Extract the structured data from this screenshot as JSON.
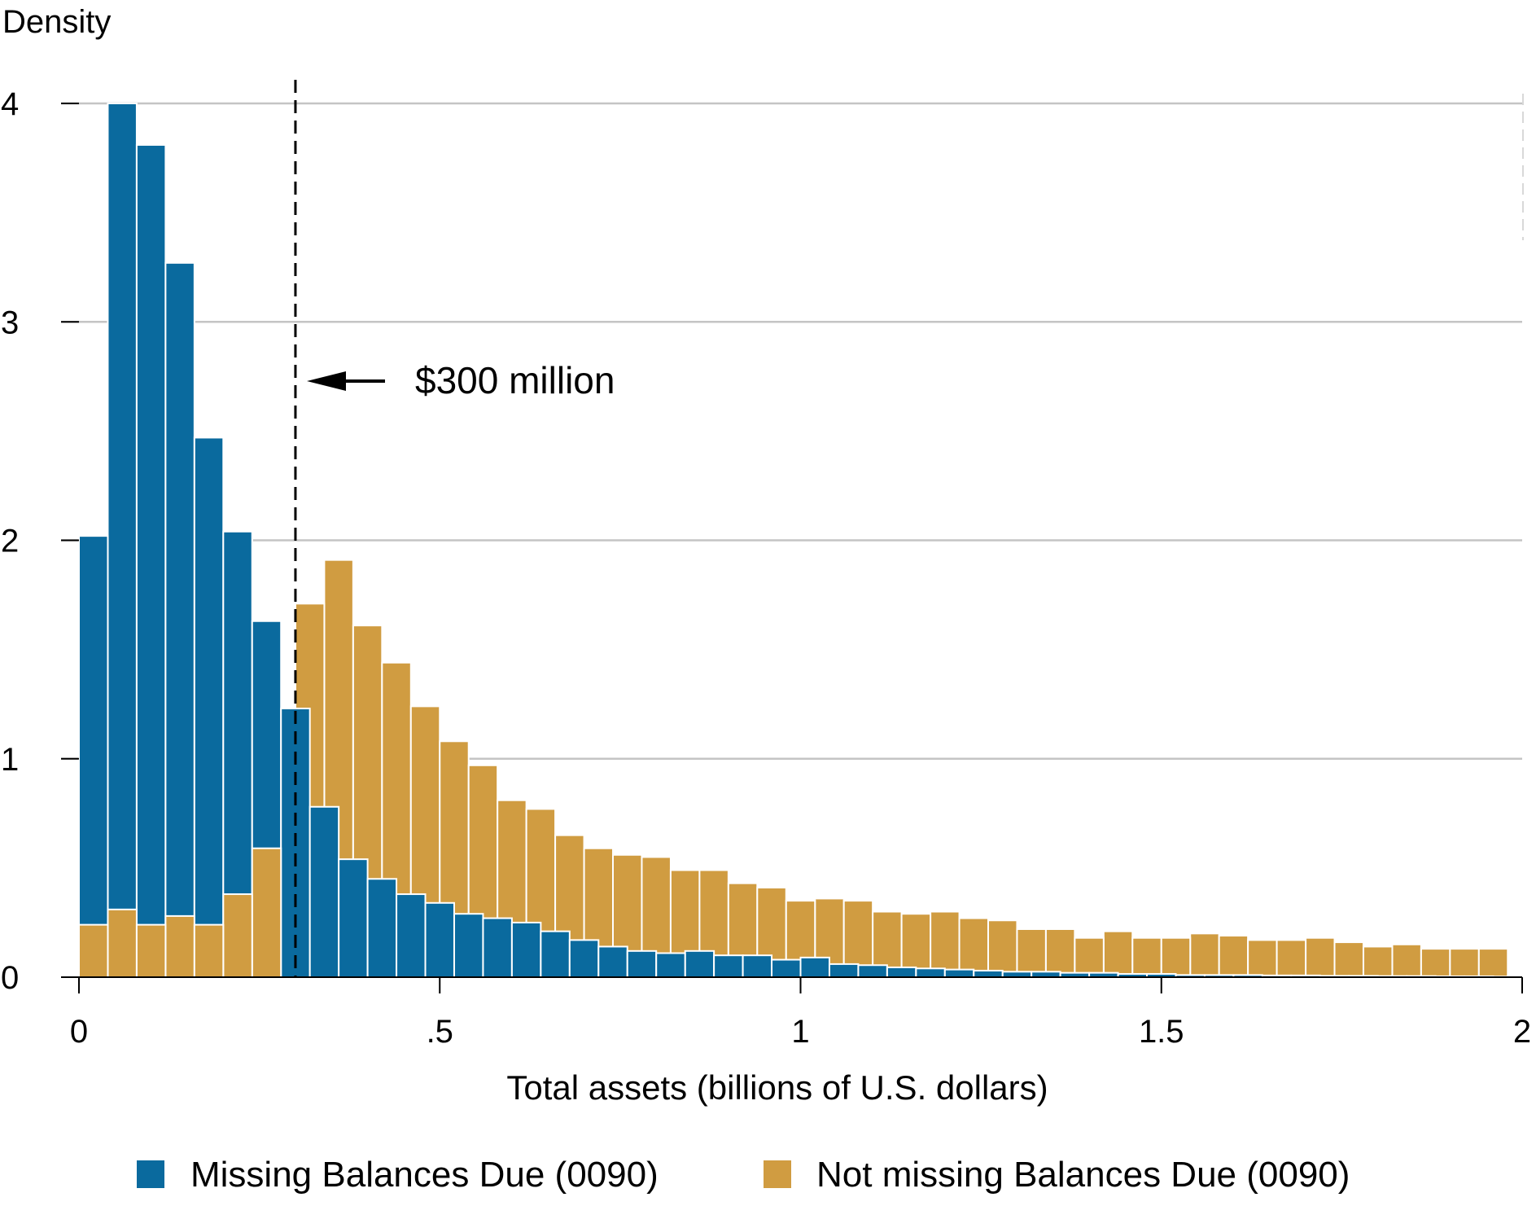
{
  "chart_data": {
    "type": "bar",
    "title": "",
    "ylabel": "Density",
    "xlabel": "Total assets (billions of U.S. dollars)",
    "xlim": [
      0,
      2
    ],
    "ylim": [
      0,
      4
    ],
    "bin_width": 0.04,
    "x_ticks": [
      {
        "value": 0,
        "label": "0"
      },
      {
        "value": 0.5,
        "label": ".5"
      },
      {
        "value": 1,
        "label": "1"
      },
      {
        "value": 1.5,
        "label": "1.5"
      },
      {
        "value": 2,
        "label": "2"
      }
    ],
    "y_ticks": [
      {
        "value": 0,
        "label": "0"
      },
      {
        "value": 1,
        "label": "1"
      },
      {
        "value": 2,
        "label": "2"
      },
      {
        "value": 3,
        "label": "3"
      },
      {
        "value": 4,
        "label": "4"
      }
    ],
    "grid": "horizontal",
    "legend_position": "bottom",
    "series": [
      {
        "name": "Missing Balances Due (0090)",
        "color": "#0a6a9e",
        "bins": [
          [
            0.0,
            2.02
          ],
          [
            0.04,
            4.0
          ],
          [
            0.08,
            3.81
          ],
          [
            0.12,
            3.27
          ],
          [
            0.16,
            2.47
          ],
          [
            0.2,
            2.04
          ],
          [
            0.24,
            1.63
          ],
          [
            0.28,
            1.23
          ],
          [
            0.32,
            0.78
          ],
          [
            0.36,
            0.54
          ],
          [
            0.4,
            0.45
          ],
          [
            0.44,
            0.38
          ],
          [
            0.48,
            0.34
          ],
          [
            0.52,
            0.29
          ],
          [
            0.56,
            0.27
          ],
          [
            0.6,
            0.25
          ],
          [
            0.64,
            0.21
          ],
          [
            0.68,
            0.17
          ],
          [
            0.72,
            0.14
          ],
          [
            0.76,
            0.12
          ],
          [
            0.8,
            0.11
          ],
          [
            0.84,
            0.12
          ],
          [
            0.88,
            0.1
          ],
          [
            0.92,
            0.1
          ],
          [
            0.96,
            0.08
          ],
          [
            1.0,
            0.09
          ],
          [
            1.04,
            0.06
          ],
          [
            1.08,
            0.055
          ],
          [
            1.12,
            0.045
          ],
          [
            1.16,
            0.04
          ],
          [
            1.2,
            0.035
          ],
          [
            1.24,
            0.03
          ],
          [
            1.28,
            0.025
          ],
          [
            1.32,
            0.025
          ],
          [
            1.36,
            0.02
          ],
          [
            1.4,
            0.02
          ],
          [
            1.44,
            0.015
          ],
          [
            1.48,
            0.015
          ],
          [
            1.52,
            0.01
          ],
          [
            1.56,
            0.01
          ],
          [
            1.6,
            0.01
          ],
          [
            1.64,
            0.008
          ],
          [
            1.68,
            0.008
          ],
          [
            1.72,
            0.006
          ],
          [
            1.76,
            0.006
          ],
          [
            1.8,
            0.005
          ],
          [
            1.84,
            0.005
          ],
          [
            1.88,
            0.004
          ],
          [
            1.92,
            0.004
          ],
          [
            1.96,
            0.003
          ]
        ]
      },
      {
        "name": "Not missing Balances Due (0090)",
        "color": "#d09c41",
        "bins": [
          [
            0.0,
            0.24
          ],
          [
            0.04,
            0.31
          ],
          [
            0.08,
            0.24
          ],
          [
            0.12,
            0.28
          ],
          [
            0.16,
            0.24
          ],
          [
            0.2,
            0.38
          ],
          [
            0.24,
            0.59
          ],
          [
            0.3,
            1.71
          ],
          [
            0.34,
            1.91
          ],
          [
            0.38,
            1.61
          ],
          [
            0.42,
            1.44
          ],
          [
            0.46,
            1.24
          ],
          [
            0.5,
            1.08
          ],
          [
            0.54,
            0.97
          ],
          [
            0.58,
            0.81
          ],
          [
            0.62,
            0.77
          ],
          [
            0.66,
            0.65
          ],
          [
            0.7,
            0.59
          ],
          [
            0.74,
            0.56
          ],
          [
            0.78,
            0.55
          ],
          [
            0.82,
            0.49
          ],
          [
            0.86,
            0.49
          ],
          [
            0.9,
            0.43
          ],
          [
            0.94,
            0.41
          ],
          [
            0.98,
            0.35
          ],
          [
            1.02,
            0.36
          ],
          [
            1.06,
            0.35
          ],
          [
            1.1,
            0.3
          ],
          [
            1.14,
            0.29
          ],
          [
            1.18,
            0.3
          ],
          [
            1.22,
            0.27
          ],
          [
            1.26,
            0.26
          ],
          [
            1.3,
            0.22
          ],
          [
            1.34,
            0.22
          ],
          [
            1.38,
            0.18
          ],
          [
            1.42,
            0.21
          ],
          [
            1.46,
            0.18
          ],
          [
            1.5,
            0.18
          ],
          [
            1.54,
            0.2
          ],
          [
            1.58,
            0.19
          ],
          [
            1.62,
            0.17
          ],
          [
            1.66,
            0.17
          ],
          [
            1.7,
            0.18
          ],
          [
            1.74,
            0.16
          ],
          [
            1.78,
            0.14
          ],
          [
            1.82,
            0.15
          ],
          [
            1.86,
            0.13
          ],
          [
            1.9,
            0.13
          ],
          [
            1.94,
            0.13
          ]
        ]
      }
    ],
    "threshold": {
      "x": 0.3,
      "label": "$300 million",
      "style": "dashed"
    }
  }
}
